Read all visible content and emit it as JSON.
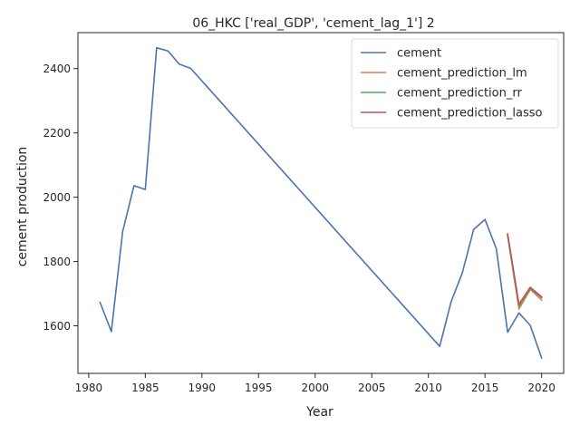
{
  "chart_data": {
    "type": "line",
    "title": "06_HKC ['real_GDP', 'cement_lag_1'] 2",
    "xlabel": "Year",
    "ylabel": "cement production",
    "xlim": [
      1979.05,
      2021.95
    ],
    "ylim": [
      1452,
      2512
    ],
    "xticks": [
      1980,
      1985,
      1990,
      1995,
      2000,
      2005,
      2010,
      2015,
      2020
    ],
    "yticks": [
      1600,
      1800,
      2000,
      2200,
      2400
    ],
    "grid": false,
    "legend_position": "upper-right",
    "series": [
      {
        "name": "cement",
        "color": "#4c72b0",
        "x": [
          1981,
          1982,
          1983,
          1984,
          1985,
          1986,
          1987,
          1988,
          1989,
          2011,
          2012,
          2013,
          2014,
          2015,
          2016,
          2017,
          2018,
          2019,
          2020
        ],
        "y": [
          1673,
          1582,
          1893,
          2036,
          2024,
          2465,
          2455,
          2414,
          2401,
          1536,
          1674,
          1765,
          1900,
          1931,
          1840,
          1580,
          1640,
          1601,
          1500
        ]
      },
      {
        "name": "cement_prediction_lm",
        "color": "#dd8452",
        "x": [
          2017,
          2018,
          2019,
          2020
        ],
        "y": [
          1880,
          1652,
          1713,
          1680
        ]
      },
      {
        "name": "cement_prediction_rr",
        "color": "#55a868",
        "x": [
          2017,
          2018,
          2019,
          2020
        ],
        "y": [
          1882,
          1660,
          1716,
          1687
        ]
      },
      {
        "name": "cement_prediction_lasso",
        "color": "#c44e52",
        "x": [
          2017,
          2018,
          2019,
          2020
        ],
        "y": [
          1886,
          1667,
          1720,
          1690
        ]
      }
    ]
  }
}
